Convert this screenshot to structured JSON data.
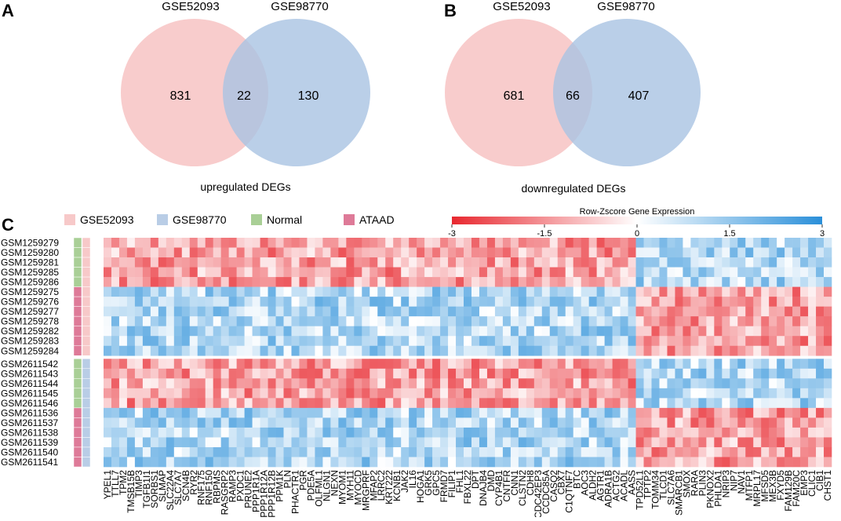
{
  "figure": {
    "panels": [
      "A",
      "B",
      "C"
    ]
  },
  "chart_data": [
    {
      "type": "venn",
      "panel": "A",
      "title": "upregulated DEGs",
      "sets": [
        {
          "name": "GSE52093",
          "color": "#f7b9b9"
        },
        {
          "name": "GSE98770",
          "color": "#9dbadc"
        }
      ],
      "values": {
        "left_only": 831,
        "intersection": 22,
        "right_only": 130
      }
    },
    {
      "type": "venn",
      "panel": "B",
      "title": "downregulated DEGs",
      "sets": [
        {
          "name": "GSE52093",
          "color": "#f7b9b9"
        },
        {
          "name": "GSE98770",
          "color": "#9dbadc"
        }
      ],
      "values": {
        "left_only": 681,
        "intersection": 66,
        "right_only": 407
      }
    },
    {
      "type": "heatmap",
      "panel": "C",
      "legend": [
        {
          "label": "GSE52093",
          "color": "#f7c9c9"
        },
        {
          "label": "GSE98770",
          "color": "#b9cde6"
        },
        {
          "label": "Normal",
          "color": "#a9cf96"
        },
        {
          "label": "ATAAD",
          "color": "#de7a98"
        }
      ],
      "colorbar": {
        "title": "Row-Zscore Gene Expression",
        "min": -3,
        "max": 3,
        "ticks": [
          "-3",
          "-1.5",
          "0",
          "1.5",
          "3"
        ],
        "low_color": "#e8282f",
        "mid_color": "#ffffff",
        "high_color": "#2a8fd9"
      },
      "rows": [
        "GSM1259279",
        "GSM1259280",
        "GSM1259281",
        "GSM1259285",
        "GSM1259286",
        "GSM1259275",
        "GSM1259276",
        "GSM1259277",
        "GSM1259278",
        "GSM1259282",
        "GSM1259283",
        "GSM1259284",
        "GSM2611542",
        "GSM2611543",
        "GSM2611544",
        "GSM2611545",
        "GSM2611546",
        "GSM2611536",
        "GSM2611537",
        "GSM2611538",
        "GSM2611539",
        "GSM2611540",
        "GSM2611541"
      ],
      "row_dataset": [
        "GSE52093",
        "GSE52093",
        "GSE52093",
        "GSE52093",
        "GSE52093",
        "GSE52093",
        "GSE52093",
        "GSE52093",
        "GSE52093",
        "GSE52093",
        "GSE52093",
        "GSE52093",
        "GSE98770",
        "GSE98770",
        "GSE98770",
        "GSE98770",
        "GSE98770",
        "GSE98770",
        "GSE98770",
        "GSE98770",
        "GSE98770",
        "GSE98770",
        "GSE98770"
      ],
      "row_group": [
        "Normal",
        "Normal",
        "Normal",
        "Normal",
        "Normal",
        "ATAAD",
        "ATAAD",
        "ATAAD",
        "ATAAD",
        "ATAAD",
        "ATAAD",
        "ATAAD",
        "Normal",
        "Normal",
        "Normal",
        "Normal",
        "Normal",
        "ATAAD",
        "ATAAD",
        "ATAAD",
        "ATAAD",
        "ATAAD",
        "ATAAD"
      ],
      "columns": [
        "YPEL1",
        "TTLL7",
        "TPM2",
        "TMSB15B",
        "TIMP3",
        "TGFB1I1",
        "SORBS1",
        "SLMAP",
        "SLC22A4",
        "SLC7A7",
        "SCN4B",
        "RYR2",
        "RNF175",
        "RNF150",
        "RBPMS",
        "RASGRP2",
        "RAMP3",
        "PXDC1",
        "PRUNE2",
        "PPP1R1A",
        "PPP1R12A",
        "PPP1R12B",
        "PPM1K",
        "PLN",
        "PHACTR1",
        "PGR",
        "PDE5A",
        "OLFML1",
        "NLGN1",
        "NEXN",
        "MYOM1",
        "MYH11",
        "MYOCD",
        "MRGPRF",
        "MFAP2",
        "LRRC2",
        "KRT222",
        "KCNB1",
        "JAK2",
        "IL16",
        "HOGA1",
        "GRK5",
        "GPC5",
        "FRMD7",
        "FILIP1",
        "FHL1",
        "FBXL22",
        "DPT",
        "DNAJB4",
        "DMD",
        "CYP4B1",
        "CNTFR",
        "CNN1",
        "CLSTN2",
        "CDH8",
        "CDC42EP3",
        "CCDC85A",
        "CASQ2",
        "CBX7",
        "C1QTNF7",
        "BTC",
        "AOC3",
        "ALDH2",
        "AGTR1",
        "ADRA1B",
        "ACTG2",
        "ACADL",
        "AASS",
        "TPD52L1",
        "TPTP2",
        "TOMM34",
        "TLCD1",
        "SLC7A6",
        "SMARCB1",
        "SMOX",
        "RARA",
        "PLIN3",
        "PKNOX2",
        "PHLDA1",
        "NRIP3",
        "NIP7",
        "NAV1",
        "MTFP1",
        "MRPL17",
        "MFSD5",
        "MEX3B",
        "FXYD5",
        "FAM129B",
        "FAM20C",
        "EMP3",
        "CLIC1",
        "CIB1",
        "CHST1"
      ],
      "n_down_genes": 68,
      "values_note": "row-z-scores in [-3,3]; sign pattern: down-genes negative in Normal rows, positive in ATAAD rows; up-genes the opposite"
    }
  ]
}
